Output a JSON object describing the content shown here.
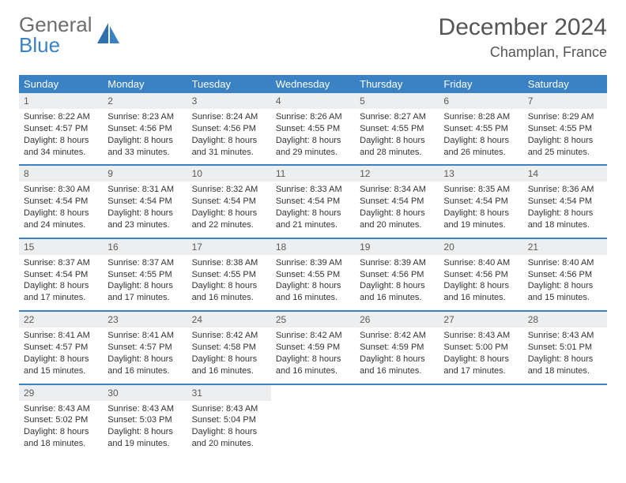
{
  "logo": {
    "top": "General",
    "bottom": "Blue"
  },
  "title": "December 2024",
  "location": "Champlan, France",
  "colors": {
    "header_bg": "#3a82c4",
    "header_text": "#ffffff",
    "daynum_bg": "#eceef0",
    "daynum_text": "#5a5a5a",
    "body_text": "#333333",
    "rule": "#3a82c4",
    "logo_grey": "#6d6d6d",
    "logo_blue": "#3a82c4"
  },
  "weekdays": [
    "Sunday",
    "Monday",
    "Tuesday",
    "Wednesday",
    "Thursday",
    "Friday",
    "Saturday"
  ],
  "weeks": [
    [
      {
        "n": "1",
        "sr": "Sunrise: 8:22 AM",
        "ss": "Sunset: 4:57 PM",
        "d1": "Daylight: 8 hours",
        "d2": "and 34 minutes."
      },
      {
        "n": "2",
        "sr": "Sunrise: 8:23 AM",
        "ss": "Sunset: 4:56 PM",
        "d1": "Daylight: 8 hours",
        "d2": "and 33 minutes."
      },
      {
        "n": "3",
        "sr": "Sunrise: 8:24 AM",
        "ss": "Sunset: 4:56 PM",
        "d1": "Daylight: 8 hours",
        "d2": "and 31 minutes."
      },
      {
        "n": "4",
        "sr": "Sunrise: 8:26 AM",
        "ss": "Sunset: 4:55 PM",
        "d1": "Daylight: 8 hours",
        "d2": "and 29 minutes."
      },
      {
        "n": "5",
        "sr": "Sunrise: 8:27 AM",
        "ss": "Sunset: 4:55 PM",
        "d1": "Daylight: 8 hours",
        "d2": "and 28 minutes."
      },
      {
        "n": "6",
        "sr": "Sunrise: 8:28 AM",
        "ss": "Sunset: 4:55 PM",
        "d1": "Daylight: 8 hours",
        "d2": "and 26 minutes."
      },
      {
        "n": "7",
        "sr": "Sunrise: 8:29 AM",
        "ss": "Sunset: 4:55 PM",
        "d1": "Daylight: 8 hours",
        "d2": "and 25 minutes."
      }
    ],
    [
      {
        "n": "8",
        "sr": "Sunrise: 8:30 AM",
        "ss": "Sunset: 4:54 PM",
        "d1": "Daylight: 8 hours",
        "d2": "and 24 minutes."
      },
      {
        "n": "9",
        "sr": "Sunrise: 8:31 AM",
        "ss": "Sunset: 4:54 PM",
        "d1": "Daylight: 8 hours",
        "d2": "and 23 minutes."
      },
      {
        "n": "10",
        "sr": "Sunrise: 8:32 AM",
        "ss": "Sunset: 4:54 PM",
        "d1": "Daylight: 8 hours",
        "d2": "and 22 minutes."
      },
      {
        "n": "11",
        "sr": "Sunrise: 8:33 AM",
        "ss": "Sunset: 4:54 PM",
        "d1": "Daylight: 8 hours",
        "d2": "and 21 minutes."
      },
      {
        "n": "12",
        "sr": "Sunrise: 8:34 AM",
        "ss": "Sunset: 4:54 PM",
        "d1": "Daylight: 8 hours",
        "d2": "and 20 minutes."
      },
      {
        "n": "13",
        "sr": "Sunrise: 8:35 AM",
        "ss": "Sunset: 4:54 PM",
        "d1": "Daylight: 8 hours",
        "d2": "and 19 minutes."
      },
      {
        "n": "14",
        "sr": "Sunrise: 8:36 AM",
        "ss": "Sunset: 4:54 PM",
        "d1": "Daylight: 8 hours",
        "d2": "and 18 minutes."
      }
    ],
    [
      {
        "n": "15",
        "sr": "Sunrise: 8:37 AM",
        "ss": "Sunset: 4:54 PM",
        "d1": "Daylight: 8 hours",
        "d2": "and 17 minutes."
      },
      {
        "n": "16",
        "sr": "Sunrise: 8:37 AM",
        "ss": "Sunset: 4:55 PM",
        "d1": "Daylight: 8 hours",
        "d2": "and 17 minutes."
      },
      {
        "n": "17",
        "sr": "Sunrise: 8:38 AM",
        "ss": "Sunset: 4:55 PM",
        "d1": "Daylight: 8 hours",
        "d2": "and 16 minutes."
      },
      {
        "n": "18",
        "sr": "Sunrise: 8:39 AM",
        "ss": "Sunset: 4:55 PM",
        "d1": "Daylight: 8 hours",
        "d2": "and 16 minutes."
      },
      {
        "n": "19",
        "sr": "Sunrise: 8:39 AM",
        "ss": "Sunset: 4:56 PM",
        "d1": "Daylight: 8 hours",
        "d2": "and 16 minutes."
      },
      {
        "n": "20",
        "sr": "Sunrise: 8:40 AM",
        "ss": "Sunset: 4:56 PM",
        "d1": "Daylight: 8 hours",
        "d2": "and 16 minutes."
      },
      {
        "n": "21",
        "sr": "Sunrise: 8:40 AM",
        "ss": "Sunset: 4:56 PM",
        "d1": "Daylight: 8 hours",
        "d2": "and 15 minutes."
      }
    ],
    [
      {
        "n": "22",
        "sr": "Sunrise: 8:41 AM",
        "ss": "Sunset: 4:57 PM",
        "d1": "Daylight: 8 hours",
        "d2": "and 15 minutes."
      },
      {
        "n": "23",
        "sr": "Sunrise: 8:41 AM",
        "ss": "Sunset: 4:57 PM",
        "d1": "Daylight: 8 hours",
        "d2": "and 16 minutes."
      },
      {
        "n": "24",
        "sr": "Sunrise: 8:42 AM",
        "ss": "Sunset: 4:58 PM",
        "d1": "Daylight: 8 hours",
        "d2": "and 16 minutes."
      },
      {
        "n": "25",
        "sr": "Sunrise: 8:42 AM",
        "ss": "Sunset: 4:59 PM",
        "d1": "Daylight: 8 hours",
        "d2": "and 16 minutes."
      },
      {
        "n": "26",
        "sr": "Sunrise: 8:42 AM",
        "ss": "Sunset: 4:59 PM",
        "d1": "Daylight: 8 hours",
        "d2": "and 16 minutes."
      },
      {
        "n": "27",
        "sr": "Sunrise: 8:43 AM",
        "ss": "Sunset: 5:00 PM",
        "d1": "Daylight: 8 hours",
        "d2": "and 17 minutes."
      },
      {
        "n": "28",
        "sr": "Sunrise: 8:43 AM",
        "ss": "Sunset: 5:01 PM",
        "d1": "Daylight: 8 hours",
        "d2": "and 18 minutes."
      }
    ],
    [
      {
        "n": "29",
        "sr": "Sunrise: 8:43 AM",
        "ss": "Sunset: 5:02 PM",
        "d1": "Daylight: 8 hours",
        "d2": "and 18 minutes."
      },
      {
        "n": "30",
        "sr": "Sunrise: 8:43 AM",
        "ss": "Sunset: 5:03 PM",
        "d1": "Daylight: 8 hours",
        "d2": "and 19 minutes."
      },
      {
        "n": "31",
        "sr": "Sunrise: 8:43 AM",
        "ss": "Sunset: 5:04 PM",
        "d1": "Daylight: 8 hours",
        "d2": "and 20 minutes."
      },
      null,
      null,
      null,
      null
    ]
  ]
}
